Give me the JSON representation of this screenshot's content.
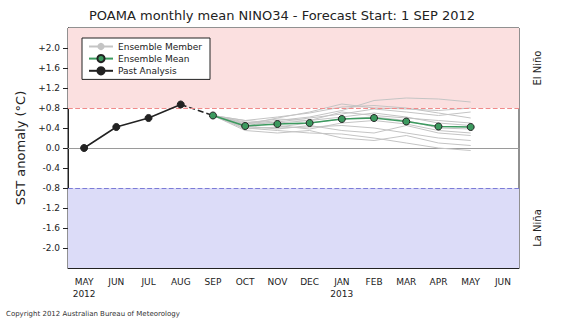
{
  "chart_data": {
    "type": "line",
    "title": "POAMA monthly mean NINO34 - Forecast Start: 1 SEP 2012",
    "y_label": "SST anomaly (°C)",
    "footnote": "Copyright 2012 Australian Bureau of Meteorology",
    "categories": [
      "MAY\n2012",
      "JUN",
      "JUL",
      "AUG",
      "SEP",
      "OCT",
      "NOV",
      "DEC",
      "JAN\n2013",
      "FEB",
      "MAR",
      "APR",
      "MAY",
      "JUN"
    ],
    "ylim": [
      -2.4,
      2.4
    ],
    "yticks": [
      {
        "value": 2.0,
        "label": "+2.0"
      },
      {
        "value": 1.6,
        "label": "+1.6"
      },
      {
        "value": 1.2,
        "label": "+1.2"
      },
      {
        "value": 0.8,
        "label": "+0.8"
      },
      {
        "value": 0.4,
        "label": "+0.4"
      },
      {
        "value": 0,
        "label": "0.0"
      },
      {
        "value": -0.4,
        "label": "-0.4"
      },
      {
        "value": -0.8,
        "label": "-0.8"
      },
      {
        "value": -1.2,
        "label": "-1.2"
      },
      {
        "value": -1.6,
        "label": "-1.6"
      },
      {
        "value": -2.0,
        "label": "-2.0"
      }
    ],
    "grid": false,
    "legend": "upper left",
    "regions": [
      {
        "label": "El Niño",
        "from": 0.8,
        "to": 2.4,
        "color": "#fbe0e0"
      },
      {
        "label": "La Niña",
        "from": -2.4,
        "to": -0.8,
        "color": "#dcdcf8"
      }
    ],
    "series": [
      {
        "name": "Ensemble Member",
        "color": "#c4c4c4",
        "marker": "none",
        "line_style": "solid",
        "members": [
          [
            null,
            null,
            null,
            null,
            0.65,
            0.55,
            0.62,
            0.7,
            0.82,
            0.85,
            0.8,
            0.7,
            0.6,
            null
          ],
          [
            null,
            null,
            null,
            null,
            0.65,
            0.4,
            0.35,
            0.3,
            0.28,
            0.2,
            0.1,
            0.0,
            -0.05,
            null
          ],
          [
            null,
            null,
            null,
            null,
            0.65,
            0.48,
            0.55,
            0.62,
            0.75,
            0.95,
            1.0,
            0.98,
            0.92,
            null
          ],
          [
            null,
            null,
            null,
            null,
            0.65,
            0.42,
            0.4,
            0.42,
            0.45,
            0.4,
            0.3,
            0.2,
            0.15,
            null
          ],
          [
            null,
            null,
            null,
            null,
            0.65,
            0.5,
            0.58,
            0.55,
            0.62,
            0.7,
            0.62,
            0.5,
            0.45,
            null
          ],
          [
            null,
            null,
            null,
            null,
            0.65,
            0.35,
            0.3,
            0.35,
            0.2,
            0.15,
            0.25,
            0.1,
            0.05,
            null
          ],
          [
            null,
            null,
            null,
            null,
            0.65,
            0.45,
            0.52,
            0.6,
            0.68,
            0.78,
            0.72,
            0.65,
            0.72,
            null
          ],
          [
            null,
            null,
            null,
            null,
            0.65,
            0.52,
            0.45,
            0.38,
            0.5,
            0.55,
            0.48,
            0.35,
            0.3,
            null
          ],
          [
            null,
            null,
            null,
            null,
            0.65,
            0.38,
            0.42,
            0.5,
            0.58,
            0.62,
            0.55,
            0.4,
            0.38,
            null
          ],
          [
            null,
            null,
            null,
            null,
            0.65,
            0.47,
            0.6,
            0.72,
            0.88,
            0.8,
            0.78,
            0.75,
            0.8,
            null
          ],
          [
            null,
            null,
            null,
            null,
            0.65,
            0.44,
            0.38,
            0.45,
            0.35,
            0.3,
            0.45,
            0.3,
            0.25,
            null
          ],
          [
            null,
            null,
            null,
            null,
            0.65,
            0.55,
            0.5,
            0.55,
            0.72,
            0.65,
            0.6,
            0.55,
            0.5,
            null
          ]
        ]
      },
      {
        "name": "Ensemble Mean",
        "color": "#3c9a5f",
        "marker": "circle",
        "line_style": "solid",
        "values": [
          null,
          null,
          null,
          null,
          0.65,
          0.44,
          0.48,
          0.5,
          0.58,
          0.6,
          0.53,
          0.43,
          0.42,
          null
        ]
      },
      {
        "name": "Past Analysis",
        "color": "#222222",
        "marker": "circle",
        "line_style": "solid",
        "values": [
          0.0,
          0.42,
          0.6,
          0.87,
          null,
          null,
          null,
          null,
          null,
          null,
          null,
          null,
          null,
          null
        ]
      }
    ]
  }
}
